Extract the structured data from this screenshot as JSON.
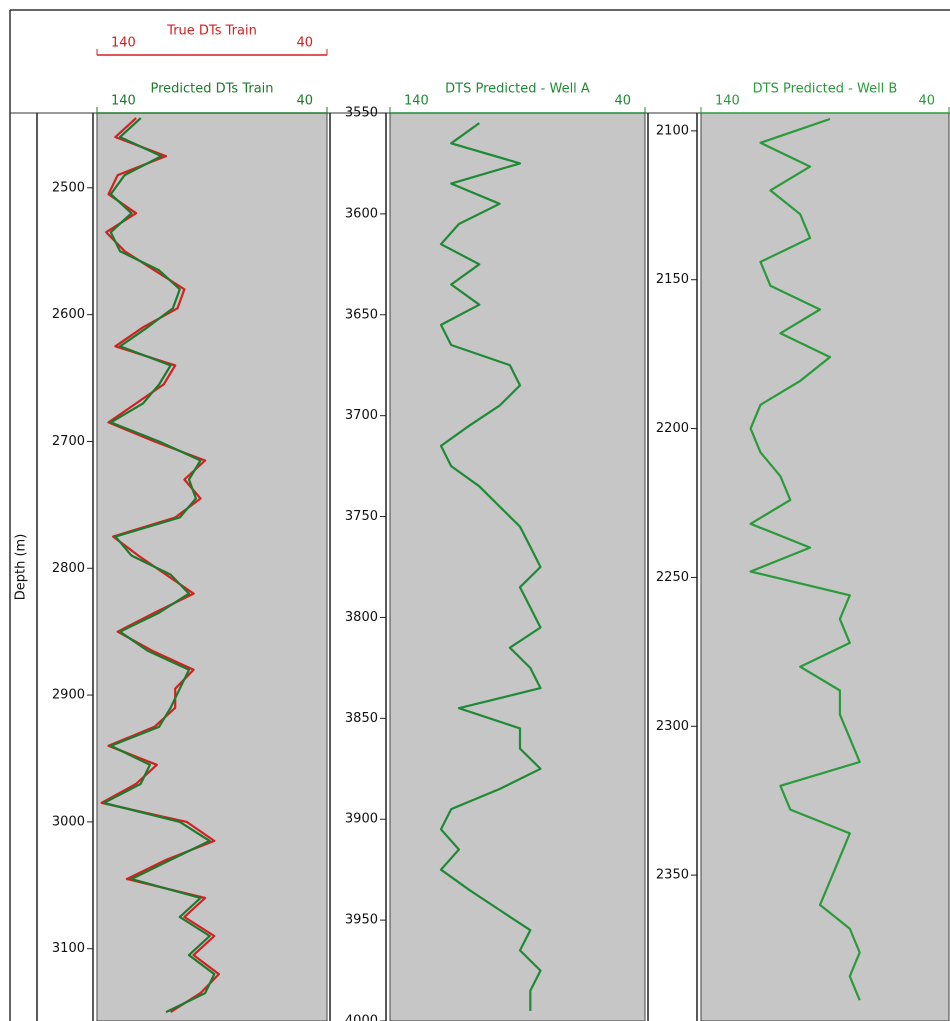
{
  "chart_data": [
    {
      "type": "line",
      "y_label": "Depth (m)",
      "y_inverted": true,
      "ylim": [
        2441,
        3157
      ],
      "yticks": [
        2500,
        2600,
        2700,
        2800,
        2900,
        3000,
        3100
      ],
      "xlim": [
        140,
        40
      ],
      "xticks": [
        140,
        40
      ],
      "background": "#c6c6c6",
      "x": [
        2445,
        2460,
        2475,
        2490,
        2505,
        2520,
        2535,
        2550,
        2565,
        2580,
        2595,
        2610,
        2625,
        2640,
        2655,
        2670,
        2685,
        2700,
        2715,
        2730,
        2745,
        2760,
        2775,
        2790,
        2805,
        2820,
        2835,
        2850,
        2865,
        2880,
        2895,
        2910,
        2925,
        2940,
        2955,
        2970,
        2985,
        3000,
        3015,
        3030,
        3045,
        3060,
        3075,
        3090,
        3105,
        3120,
        3135,
        3150
      ],
      "series": [
        {
          "name": "True DTs Train",
          "color": "#d42020",
          "values": [
            123,
            132,
            110,
            131,
            135,
            123,
            136,
            128,
            115,
            102,
            105,
            120,
            132,
            106,
            111,
            123,
            135,
            115,
            93,
            102,
            95,
            106,
            133,
            122,
            110,
            98,
            115,
            131,
            116,
            98,
            106,
            106,
            115,
            135,
            114,
            123,
            138,
            101,
            89,
            110,
            127,
            93,
            102,
            89,
            98,
            87,
            95,
            108
          ]
        },
        {
          "name": "Predicted DTs Train",
          "color": "#1d7a2c",
          "values": [
            121,
            130,
            112,
            128,
            134,
            125,
            134,
            130,
            113,
            104,
            107,
            118,
            130,
            108,
            113,
            120,
            134,
            113,
            95,
            100,
            97,
            104,
            132,
            125,
            108,
            100,
            113,
            130,
            118,
            100,
            104,
            108,
            113,
            134,
            117,
            121,
            137,
            104,
            91,
            108,
            125,
            95,
            104,
            91,
            100,
            89,
            93,
            110
          ]
        }
      ]
    },
    {
      "type": "line",
      "y_inverted": true,
      "ylim": [
        3550,
        4000
      ],
      "yticks": [
        3550,
        3600,
        3650,
        3700,
        3750,
        3800,
        3850,
        3900,
        3950,
        4000
      ],
      "xlim": [
        140,
        40
      ],
      "xticks": [
        140,
        40
      ],
      "background": "#c6c6c6",
      "x": [
        3555,
        3565,
        3575,
        3585,
        3595,
        3605,
        3615,
        3625,
        3635,
        3645,
        3655,
        3665,
        3675,
        3685,
        3695,
        3705,
        3715,
        3725,
        3735,
        3745,
        3755,
        3765,
        3775,
        3785,
        3795,
        3805,
        3815,
        3825,
        3835,
        3845,
        3855,
        3865,
        3875,
        3885,
        3895,
        3905,
        3915,
        3925,
        3935,
        3945,
        3955,
        3965,
        3975,
        3985,
        3995
      ],
      "series": [
        {
          "name": "DTS Predicted - Well A",
          "color": "#1f8a35",
          "values": [
            105,
            116,
            89,
            116,
            97,
            113,
            120,
            105,
            116,
            105,
            120,
            116,
            93,
            89,
            97,
            109,
            120,
            116,
            105,
            97,
            89,
            85,
            81,
            89,
            85,
            81,
            93,
            85,
            81,
            113,
            89,
            89,
            81,
            97,
            116,
            120,
            113,
            120,
            109,
            97,
            85,
            89,
            81,
            85,
            85
          ]
        }
      ]
    },
    {
      "type": "line",
      "y_inverted": true,
      "ylim": [
        2094,
        2399
      ],
      "yticks": [
        2100,
        2150,
        2200,
        2250,
        2300,
        2350
      ],
      "xlim": [
        140,
        40
      ],
      "xticks": [
        140,
        40
      ],
      "background": "#c6c6c6",
      "x": [
        2096,
        2104,
        2112,
        2120,
        2128,
        2136,
        2144,
        2152,
        2160,
        2168,
        2176,
        2184,
        2192,
        2200,
        2208,
        2216,
        2224,
        2232,
        2240,
        2248,
        2256,
        2264,
        2272,
        2280,
        2288,
        2296,
        2304,
        2312,
        2320,
        2328,
        2336,
        2344,
        2352,
        2360,
        2368,
        2376,
        2384,
        2392
      ],
      "series": [
        {
          "name": "DTS Predicted - Well B",
          "color": "#2a9a3a",
          "values": [
            88,
            116,
            96,
            112,
            100,
            96,
            116,
            112,
            92,
            108,
            88,
            100,
            116,
            120,
            116,
            108,
            104,
            120,
            96,
            120,
            80,
            84,
            80,
            100,
            84,
            84,
            80,
            76,
            108,
            104,
            80,
            84,
            88,
            92,
            80,
            76,
            80,
            76
          ]
        }
      ]
    }
  ]
}
